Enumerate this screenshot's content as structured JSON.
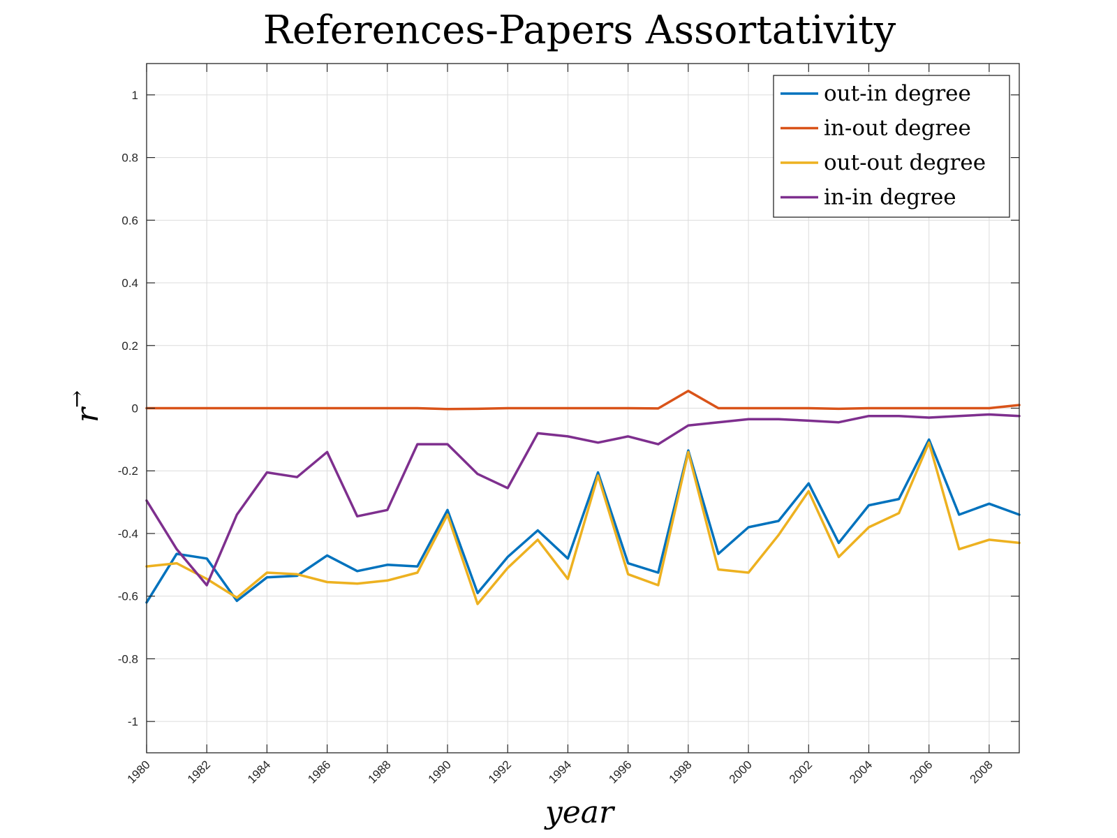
{
  "chart_data": {
    "type": "line",
    "title": "References-Papers Assortativity",
    "xlabel": "year",
    "ylabel": "r",
    "ylabel_superscript": "→",
    "xlim": [
      1980,
      2009
    ],
    "ylim": [
      -1.1,
      1.1
    ],
    "xticks": [
      1980,
      1982,
      1984,
      1986,
      1988,
      1990,
      1992,
      1994,
      1996,
      1998,
      2000,
      2002,
      2004,
      2006,
      2008
    ],
    "xtick_labels": [
      "1980",
      "1982",
      "1984",
      "1986",
      "1988",
      "1990",
      "1992",
      "1994",
      "1996",
      "1998",
      "2000",
      "2002",
      "2004",
      "2006",
      "2008"
    ],
    "yticks": [
      1,
      0.8,
      0.6,
      0.4,
      0.2,
      0,
      -0.2,
      -0.4,
      -0.6,
      -0.8,
      -1
    ],
    "ytick_labels": [
      "1",
      "0.8",
      "0.6",
      "0.4",
      "0.2",
      "0",
      "-0.2",
      "-0.4",
      "-0.6",
      "-0.8",
      "-1"
    ],
    "grid": true,
    "legend_position": "top-right",
    "x": [
      1980,
      1981,
      1982,
      1983,
      1984,
      1985,
      1986,
      1987,
      1988,
      1989,
      1990,
      1991,
      1992,
      1993,
      1994,
      1995,
      1996,
      1997,
      1998,
      1999,
      2000,
      2001,
      2002,
      2003,
      2004,
      2005,
      2006,
      2007,
      2008,
      2009
    ],
    "series": [
      {
        "name": "out-in degree",
        "color": "#0072BD",
        "values": [
          -0.62,
          -0.465,
          -0.48,
          -0.615,
          -0.54,
          -0.535,
          -0.47,
          -0.52,
          -0.5,
          -0.505,
          -0.325,
          -0.59,
          -0.475,
          -0.39,
          -0.48,
          -0.205,
          -0.495,
          -0.525,
          -0.135,
          -0.465,
          -0.38,
          -0.36,
          -0.24,
          -0.43,
          -0.31,
          -0.29,
          -0.1,
          -0.34,
          -0.305,
          -0.34
        ]
      },
      {
        "name": "in-out degree",
        "color": "#D95319",
        "values": [
          0.0,
          0.0,
          0.0,
          0.0,
          0.0,
          0.0,
          0.0,
          0.0,
          0.0,
          0.0,
          -0.003,
          -0.002,
          0.0,
          0.0,
          0.0,
          0.0,
          0.0,
          -0.001,
          0.055,
          0.0,
          0.0,
          0.0,
          0.0,
          -0.002,
          0.0,
          0.0,
          0.0,
          0.0,
          0.0,
          0.01
        ]
      },
      {
        "name": "out-out degree",
        "color": "#EDB120",
        "values": [
          -0.505,
          -0.495,
          -0.545,
          -0.605,
          -0.525,
          -0.53,
          -0.555,
          -0.56,
          -0.55,
          -0.525,
          -0.34,
          -0.625,
          -0.51,
          -0.42,
          -0.545,
          -0.215,
          -0.53,
          -0.565,
          -0.14,
          -0.515,
          -0.525,
          -0.405,
          -0.265,
          -0.475,
          -0.38,
          -0.335,
          -0.11,
          -0.45,
          -0.42,
          -0.43
        ]
      },
      {
        "name": "in-in degree",
        "color": "#7E2F8E",
        "values": [
          -0.295,
          -0.45,
          -0.565,
          -0.34,
          -0.205,
          -0.22,
          -0.14,
          -0.345,
          -0.325,
          -0.115,
          -0.115,
          -0.21,
          -0.255,
          -0.08,
          -0.09,
          -0.11,
          -0.09,
          -0.115,
          -0.055,
          -0.045,
          -0.035,
          -0.035,
          -0.04,
          -0.045,
          -0.025,
          -0.025,
          -0.03,
          -0.025,
          -0.02,
          -0.025
        ]
      }
    ]
  }
}
